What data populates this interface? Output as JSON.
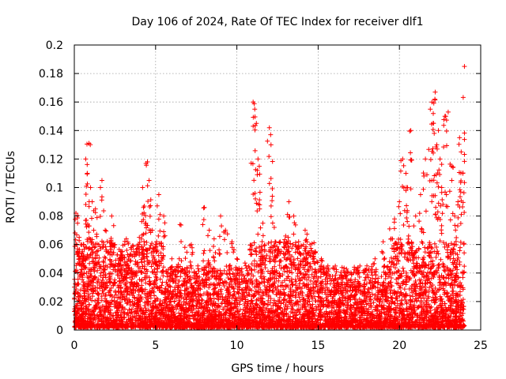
{
  "chart_data": {
    "type": "scatter",
    "title": "Day 106 of 2024, Rate Of TEC Index for receiver dlf1",
    "xlabel": "GPS time / hours",
    "ylabel": "ROTI / TECUs",
    "xlim": [
      0,
      25
    ],
    "ylim": [
      0,
      0.2
    ],
    "xticks": [
      "0",
      "5",
      "10",
      "15",
      "20",
      "25"
    ],
    "yticks": [
      "0",
      "0.02",
      "0.04",
      "0.06",
      "0.08",
      "0.1",
      "0.12",
      "0.14",
      "0.16",
      "0.18",
      "0.2"
    ],
    "grid": true,
    "marker": "plus",
    "color": "#ff0000",
    "series": [
      {
        "x": [
          0.1,
          0.2,
          0.3,
          0.4,
          0.5,
          0.7,
          0.8,
          0.9,
          1.0,
          1.1,
          1.3,
          1.5,
          1.7,
          1.9,
          2.1,
          2.3,
          2.5,
          2.8,
          3.0,
          3.2,
          3.5,
          3.8,
          4.0,
          4.2,
          4.3,
          4.4,
          4.5,
          4.6,
          4.8,
          5.0,
          5.2,
          5.5,
          6.0,
          6.5,
          6.8,
          7.2,
          7.6,
          8.0,
          8.3,
          8.6,
          9.0,
          9.3,
          9.7,
          10.0,
          10.5,
          11.0,
          11.1,
          11.2,
          11.3,
          11.4,
          11.6,
          12.0,
          12.1,
          12.3,
          12.6,
          13.0,
          13.2,
          13.5,
          13.8,
          14.2,
          14.5,
          14.8,
          15.2,
          15.6,
          16.0,
          16.5,
          17.0,
          17.5,
          18.0,
          18.5,
          19.0,
          19.4,
          19.7,
          20.0,
          20.2,
          20.4,
          20.5,
          20.7,
          21.0,
          21.3,
          21.6,
          21.9,
          22.0,
          22.1,
          22.2,
          22.3,
          22.4,
          22.5,
          22.6,
          22.8,
          23.0,
          23.2,
          23.4,
          23.6,
          23.7,
          23.8,
          23.9,
          24.0
        ],
        "y": [
          0.082,
          0.075,
          0.065,
          0.06,
          0.055,
          0.12,
          0.11,
          0.131,
          0.1,
          0.09,
          0.085,
          0.06,
          0.105,
          0.07,
          0.055,
          0.08,
          0.06,
          0.05,
          0.045,
          0.064,
          0.04,
          0.055,
          0.065,
          0.1,
          0.087,
          0.075,
          0.118,
          0.105,
          0.07,
          0.06,
          0.095,
          0.08,
          0.05,
          0.074,
          0.058,
          0.06,
          0.045,
          0.086,
          0.07,
          0.064,
          0.08,
          0.07,
          0.062,
          0.05,
          0.047,
          0.16,
          0.155,
          0.145,
          0.12,
          0.085,
          0.075,
          0.142,
          0.13,
          0.072,
          0.055,
          0.066,
          0.09,
          0.08,
          0.062,
          0.07,
          0.06,
          0.055,
          0.05,
          0.045,
          0.035,
          0.032,
          0.03,
          0.033,
          0.045,
          0.05,
          0.062,
          0.071,
          0.078,
          0.09,
          0.12,
          0.11,
          0.1,
          0.14,
          0.08,
          0.095,
          0.12,
          0.155,
          0.16,
          0.145,
          0.167,
          0.13,
          0.14,
          0.12,
          0.1,
          0.15,
          0.153,
          0.115,
          0.08,
          0.09,
          0.135,
          0.125,
          0.11,
          0.185
        ],
        "baseline_band": [
          0.002,
          0.045
        ],
        "point_count_approx": 6000
      }
    ]
  }
}
